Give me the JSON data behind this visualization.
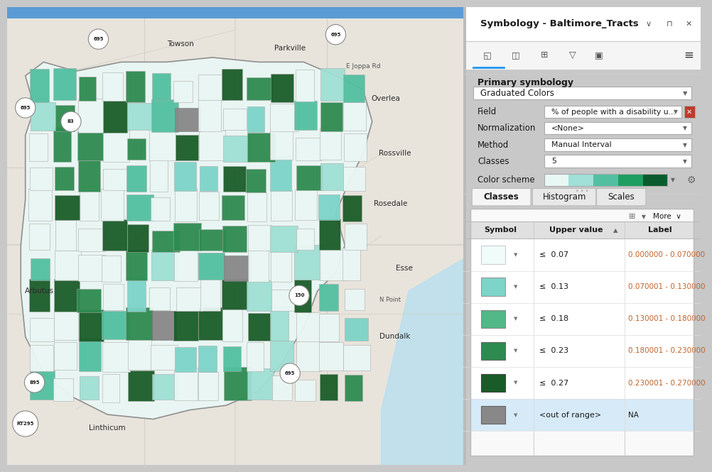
{
  "panel_title": "Symbology - Baltimore_Tracts",
  "panel_bg": "#f5f5f5",
  "primary_symbology_label": "Primary symbology",
  "graduated_colors": "Graduated Colors",
  "field_label": "Field",
  "field_value": "% of people with a disability u...",
  "normalization_label": "Normalization",
  "normalization_value": "<None>",
  "method_label": "Method",
  "method_value": "Manual Interval",
  "classes_label": "Classes",
  "classes_value": "5",
  "color_scheme_label": "Color scheme",
  "color_scheme_colors": [
    "#e8f8f5",
    "#a0e0d8",
    "#52c0a0",
    "#1e9e60",
    "#0a5c2e"
  ],
  "tabs": [
    "Classes",
    "Histogram",
    "Scales"
  ],
  "active_tab": "Classes",
  "table_rows": [
    {
      "color": "#f0fcfa",
      "border": "#cccccc",
      "upper": "≤  0.07",
      "label": "0.000000 - 0.070000"
    },
    {
      "color": "#7dd4c8",
      "border": "#999999",
      "upper": "≤  0.13",
      "label": "0.070001 - 0.130000"
    },
    {
      "color": "#52b888",
      "border": "#888888",
      "upper": "≤  0.18",
      "label": "0.130001 - 0.180000"
    },
    {
      "color": "#2e8b50",
      "border": "#666666",
      "upper": "≤  0.23",
      "label": "0.180001 - 0.230000"
    },
    {
      "color": "#1a5c28",
      "border": "#444444",
      "upper": "≤  0.27",
      "label": "0.230001 - 0.270000"
    },
    {
      "color": "#888888",
      "border": "#666666",
      "upper": "<out of range>",
      "label": "NA"
    }
  ],
  "out_of_range_bg": "#d6eaf8",
  "label_color": "#c0622a",
  "row_bg": "#ffffff",
  "map_tract_colors": {
    "very_light": "#eaf7f4",
    "light": "#a0dfd4",
    "medium_light": "#7dd4c8",
    "medium": "#52c0a0",
    "medium_dark": "#2e8b50",
    "dark": "#1a5c28",
    "gray": "#888888"
  }
}
